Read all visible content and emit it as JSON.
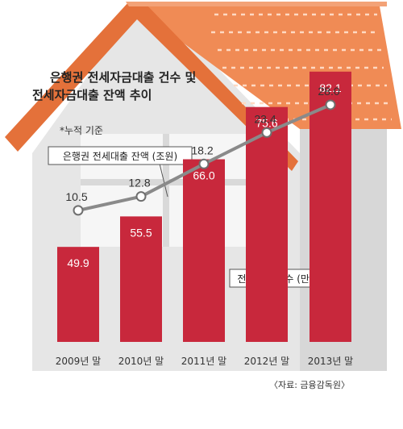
{
  "chart_data": {
    "type": "bar+line",
    "title_lines": [
      "은행권 전세자금대출 건수 및",
      "전세자금대출 잔액 추이"
    ],
    "note": "*누적 기준",
    "categories": [
      "2009년 말",
      "2010년 말",
      "2011년 말",
      "2012년 말",
      "2013년 말"
    ],
    "series": [
      {
        "name": "전세대출 건수 (만건)",
        "type": "bar",
        "values": [
          49.9,
          55.5,
          66.0,
          75.6,
          82.1
        ]
      },
      {
        "name": "은행권 전세대출 잔액 (조원)",
        "type": "line",
        "values": [
          10.5,
          12.8,
          18.2,
          23.4,
          28.0
        ]
      }
    ],
    "value_labels": {
      "bar": [
        "49.9",
        "55.5",
        "66.0",
        "75.6",
        "82.1"
      ],
      "line": [
        "10.5",
        "12.8",
        "18.2",
        "23.4",
        "28.0"
      ]
    },
    "source": "〈자료: 금융감독원〉",
    "colors": {
      "bar": "#c8283c",
      "line": "#8a8a8a",
      "roof": "#ef8a52",
      "house": "#e8e8e8",
      "window": "#f7f7f7"
    }
  }
}
